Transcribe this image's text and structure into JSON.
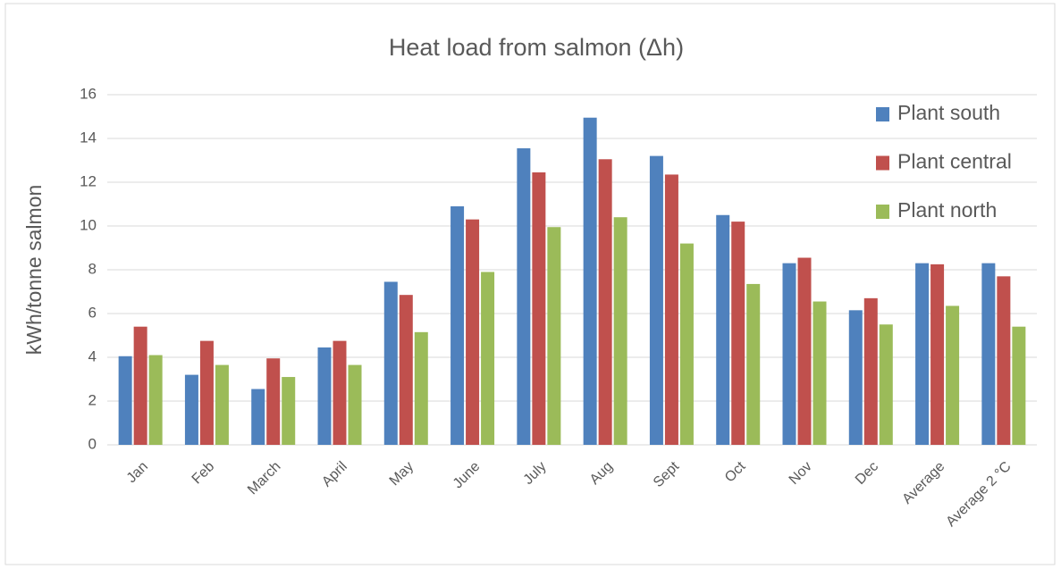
{
  "chart_data": {
    "type": "bar",
    "title": "Heat load from salmon (Δh)",
    "y_label": "kWh/tonne salmon",
    "categories": [
      "Jan",
      "Feb",
      "March",
      "April",
      "May",
      "June",
      "July",
      "Aug",
      "Sept",
      "Oct",
      "Nov",
      "Dec",
      "Average",
      "Average 2 °C"
    ],
    "series": [
      {
        "name": "Plant south",
        "color": "#4f81bd",
        "values": [
          4.05,
          3.2,
          2.55,
          4.45,
          7.45,
          10.9,
          13.55,
          14.95,
          13.2,
          10.5,
          8.3,
          6.15,
          8.3,
          8.3
        ]
      },
      {
        "name": "Plant central",
        "color": "#c0504d",
        "values": [
          5.4,
          4.75,
          3.95,
          4.75,
          6.85,
          10.3,
          12.45,
          13.05,
          12.35,
          10.2,
          8.55,
          6.7,
          8.25,
          7.7
        ]
      },
      {
        "name": "Plant north",
        "color": "#9bbb59",
        "values": [
          4.1,
          3.65,
          3.1,
          3.65,
          5.15,
          7.9,
          9.95,
          10.4,
          9.2,
          7.35,
          6.55,
          5.5,
          6.35,
          5.4
        ]
      }
    ],
    "ylim": [
      0,
      16
    ],
    "yticks": [
      0,
      2,
      4,
      6,
      8,
      10,
      12,
      14,
      16
    ],
    "grid": true,
    "legend": "top-right"
  }
}
